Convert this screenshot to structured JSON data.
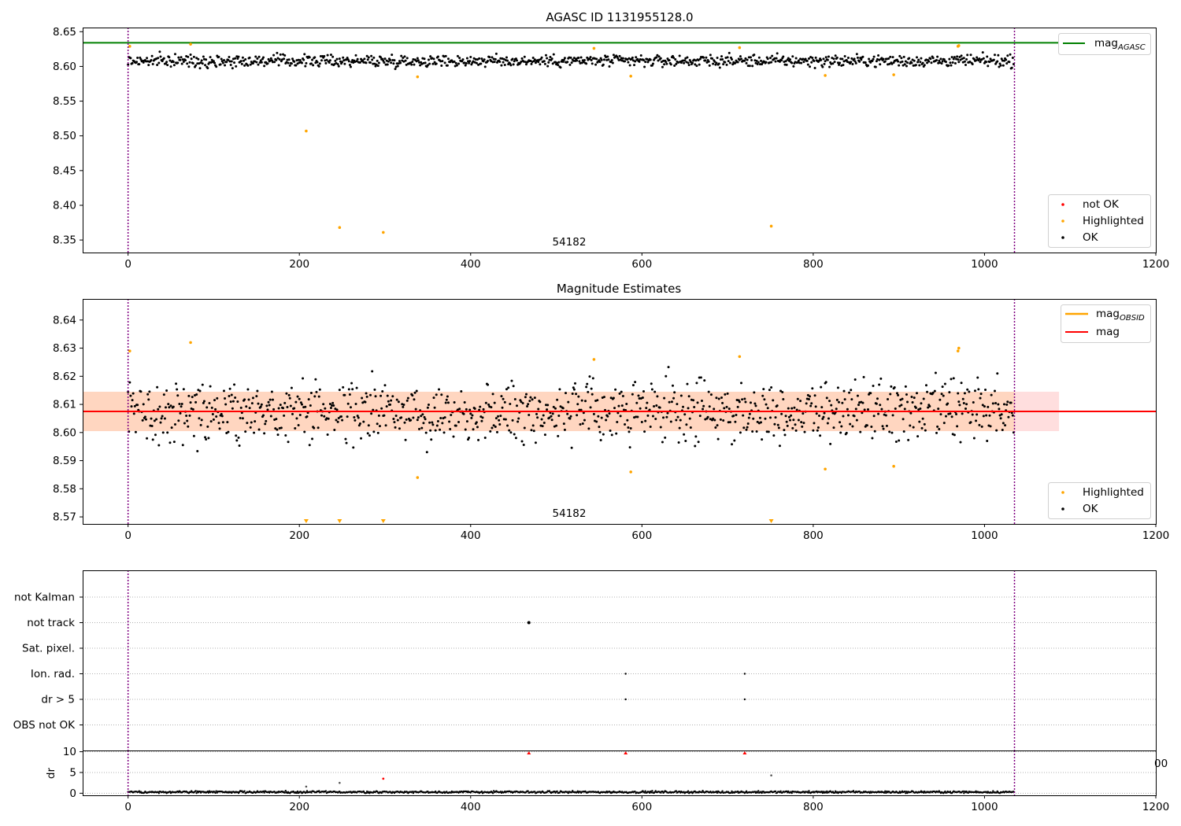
{
  "chart_data": [
    {
      "type": "scatter",
      "title": "AGASC ID 1131955128.0",
      "xlim": [
        -53,
        1200
      ],
      "ylim": [
        8.332,
        8.656
      ],
      "xticks": [
        "0",
        "200",
        "400",
        "600",
        "800",
        "1000",
        "1200"
      ],
      "yticks": [
        "8.35",
        "8.40",
        "8.45",
        "8.50",
        "8.55",
        "8.60",
        "8.65"
      ],
      "ytick_values": [
        8.35,
        8.4,
        8.45,
        8.5,
        8.55,
        8.6,
        8.65
      ],
      "annotation": {
        "text": "54182",
        "x": 515
      },
      "vlines": [
        0,
        1035
      ],
      "hline": {
        "label": "mag",
        "label_sub": "AGASC",
        "y": 8.634,
        "color": "#008000"
      },
      "ok_points": {
        "n": 1035,
        "center": 8.608,
        "spread": 0.006
      },
      "highlighted": [
        {
          "x": 2,
          "y": 8.629
        },
        {
          "x": 73,
          "y": 8.632
        },
        {
          "x": 208,
          "y": 8.507
        },
        {
          "x": 247,
          "y": 8.368
        },
        {
          "x": 298,
          "y": 8.361
        },
        {
          "x": 338,
          "y": 8.585
        },
        {
          "x": 544,
          "y": 8.626
        },
        {
          "x": 587,
          "y": 8.586
        },
        {
          "x": 714,
          "y": 8.627
        },
        {
          "x": 751,
          "y": 8.37
        },
        {
          "x": 814,
          "y": 8.587
        },
        {
          "x": 894,
          "y": 8.588
        },
        {
          "x": 969,
          "y": 8.629
        },
        {
          "x": 970,
          "y": 8.63
        }
      ],
      "legends": [
        {
          "position": "upper-right",
          "entries": [
            {
              "label": "mag",
              "sub": "AGASC",
              "kind": "line",
              "color": "#008000"
            }
          ]
        },
        {
          "position": "lower-right",
          "entries": [
            {
              "label": "not OK",
              "kind": "dot",
              "color": "#ff0000"
            },
            {
              "label": "Highlighted",
              "kind": "dot",
              "color": "#ffa500"
            },
            {
              "label": "OK",
              "kind": "dot",
              "color": "#000000"
            }
          ]
        }
      ]
    },
    {
      "type": "scatter",
      "title": "Magnitude Estimates",
      "xlim": [
        -53,
        1200
      ],
      "ylim": [
        8.5675,
        8.6475
      ],
      "xticks": [
        "0",
        "200",
        "400",
        "600",
        "800",
        "1000",
        "1200"
      ],
      "yticks": [
        "8.57",
        "8.58",
        "8.59",
        "8.60",
        "8.61",
        "8.62",
        "8.63",
        "8.64"
      ],
      "ytick_values": [
        8.57,
        8.58,
        8.59,
        8.6,
        8.61,
        8.62,
        8.63,
        8.64
      ],
      "annotation": {
        "text": "54182",
        "x": 515
      },
      "vlines": [
        0,
        1035
      ],
      "mag_line": {
        "label": "mag",
        "y": 8.6075,
        "color": "#ff0000"
      },
      "band": {
        "y_low": 8.6005,
        "y_high": 8.6145,
        "x_end": 1087,
        "color": "#ffdede"
      },
      "band_obsid": {
        "x_end": 1035,
        "color": "#ffd6c0"
      },
      "mag_obsid": {
        "label": "mag",
        "sub": "OBSID",
        "color": "#ffa500"
      },
      "ok_points": {
        "n": 1035,
        "center": 8.6075,
        "spread": 0.0075
      },
      "highlighted": [
        {
          "x": 2,
          "y": 8.629
        },
        {
          "x": 73,
          "y": 8.632
        },
        {
          "x": 338,
          "y": 8.584
        },
        {
          "x": 544,
          "y": 8.626
        },
        {
          "x": 587,
          "y": 8.586
        },
        {
          "x": 714,
          "y": 8.627
        },
        {
          "x": 814,
          "y": 8.587
        },
        {
          "x": 894,
          "y": 8.588
        },
        {
          "x": 969,
          "y": 8.629
        },
        {
          "x": 970,
          "y": 8.63
        }
      ],
      "off_scale_low": [
        208,
        247,
        298,
        751
      ],
      "legends": [
        {
          "position": "upper-right",
          "entries": [
            {
              "label": "mag",
              "sub": "OBSID",
              "kind": "line",
              "color": "#ffa500"
            },
            {
              "label": "mag",
              "kind": "line",
              "color": "#ff0000"
            }
          ]
        },
        {
          "position": "lower-right",
          "entries": [
            {
              "label": "Highlighted",
              "kind": "dot",
              "color": "#ffa500"
            },
            {
              "label": "OK",
              "kind": "dot",
              "color": "#000000"
            }
          ]
        }
      ]
    },
    {
      "type": "scatter",
      "title": "",
      "xlim": [
        -53,
        1200
      ],
      "categories": [
        "not Kalman",
        "not track",
        "Sat. pixel.",
        "Ion. rad.",
        "dr > 5",
        "OBS not OK"
      ],
      "flag_points": [
        {
          "category": "not track",
          "x": 468
        },
        {
          "category": "Ion. rad.",
          "x": 581
        },
        {
          "category": "Ion. rad.",
          "x": 720
        },
        {
          "category": "dr > 5",
          "x": 581
        },
        {
          "category": "dr > 5",
          "x": 720
        }
      ],
      "vlines": [
        0,
        1035
      ]
    },
    {
      "type": "scatter",
      "title": "",
      "xlim": [
        -53,
        1200
      ],
      "ylim": [
        -0.5,
        10.3
      ],
      "ylabel": "dr",
      "xticks": [
        "0",
        "200",
        "400",
        "600",
        "800",
        "1000",
        "1200"
      ],
      "yticks": [
        "0",
        "5",
        "10"
      ],
      "ytick_values": [
        0,
        5,
        10
      ],
      "clipped_label": "00",
      "vlines": [
        0,
        1035
      ],
      "ok_points": {
        "n": 1035,
        "center": 0.28,
        "spread": 0.12
      },
      "highlighted": [
        {
          "x": 208,
          "y": 1.6
        },
        {
          "x": 247,
          "y": 2.5
        },
        {
          "x": 751,
          "y": 4.3
        }
      ],
      "not_ok": [
        {
          "x": 298,
          "y": 3.5
        }
      ],
      "off_scale_high": [
        468,
        581,
        720
      ]
    }
  ]
}
